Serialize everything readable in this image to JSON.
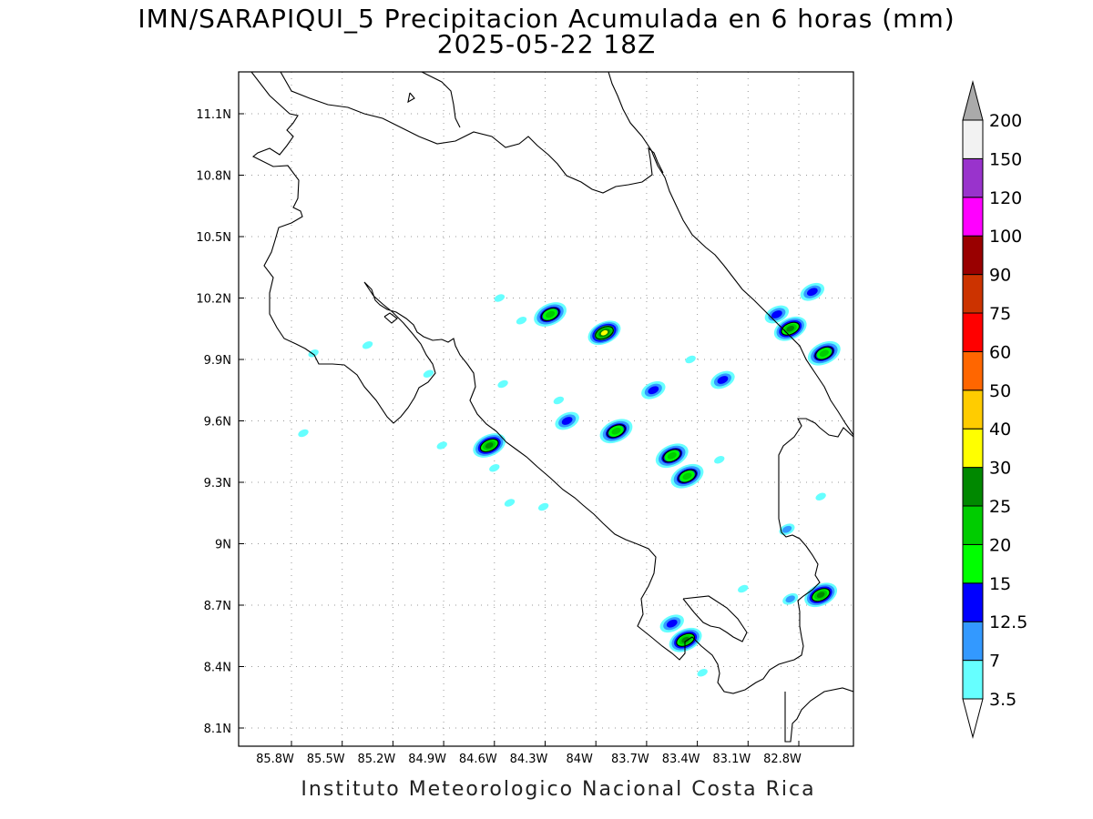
{
  "header": {
    "title_line1": "IMN/SARAPIQUI_5 Precipitacion Acumulada en 6 horas (mm)",
    "title_line2": "2025-05-22 18Z"
  },
  "footer": {
    "credit": "Instituto Meteorologico Nacional Costa Rica"
  },
  "map": {
    "lat_labels": [
      "11.1N",
      "10.8N",
      "10.5N",
      "10.2N",
      "9.9N",
      "9.6N",
      "9.3N",
      "9N",
      "8.7N",
      "8.4N",
      "8.1N"
    ],
    "lon_labels": [
      "85.8W",
      "85.5W",
      "85.2W",
      "84.9W",
      "84.6W",
      "84.3W",
      "84W",
      "83.7W",
      "83.4W",
      "83.1W",
      "82.8W"
    ],
    "precip_cells": [
      {
        "lon": -83.95,
        "lat": 10.03,
        "max_mm": 30
      },
      {
        "lon": -84.63,
        "lat": 9.48,
        "max_mm": 25
      },
      {
        "lon": -82.85,
        "lat": 10.05,
        "max_mm": 25
      },
      {
        "lon": -82.67,
        "lat": 8.75,
        "max_mm": 25
      },
      {
        "lon": -83.47,
        "lat": 8.53,
        "max_mm": 25
      },
      {
        "lon": -82.93,
        "lat": 10.12,
        "max_mm": 12.5
      },
      {
        "lon": -82.65,
        "lat": 9.93,
        "max_mm": 20
      },
      {
        "lon": -82.72,
        "lat": 10.23,
        "max_mm": 12.5
      },
      {
        "lon": -84.27,
        "lat": 10.12,
        "max_mm": 20
      },
      {
        "lon": -83.88,
        "lat": 9.55,
        "max_mm": 20
      },
      {
        "lon": -83.55,
        "lat": 9.43,
        "max_mm": 20
      },
      {
        "lon": -83.46,
        "lat": 9.33,
        "max_mm": 20
      },
      {
        "lon": -84.17,
        "lat": 9.6,
        "max_mm": 12.5
      },
      {
        "lon": -83.55,
        "lat": 8.61,
        "max_mm": 12.5
      },
      {
        "lon": -83.66,
        "lat": 9.75,
        "max_mm": 12.5
      },
      {
        "lon": -83.25,
        "lat": 9.8,
        "max_mm": 12.5
      },
      {
        "lon": -82.85,
        "lat": 8.73,
        "max_mm": 7
      },
      {
        "lon": -82.87,
        "lat": 9.07,
        "max_mm": 7
      },
      {
        "lon": -85.67,
        "lat": 9.93,
        "max_mm": 3.5
      },
      {
        "lon": -85.73,
        "lat": 9.54,
        "max_mm": 3.5
      },
      {
        "lon": -84.57,
        "lat": 10.2,
        "max_mm": 3.5
      },
      {
        "lon": -84.44,
        "lat": 10.09,
        "max_mm": 3.5
      },
      {
        "lon": -84.55,
        "lat": 9.78,
        "max_mm": 3.5
      },
      {
        "lon": -84.22,
        "lat": 9.7,
        "max_mm": 3.5
      },
      {
        "lon": -84.6,
        "lat": 9.37,
        "max_mm": 3.5
      },
      {
        "lon": -84.51,
        "lat": 9.2,
        "max_mm": 3.5
      },
      {
        "lon": -84.31,
        "lat": 9.18,
        "max_mm": 3.5
      },
      {
        "lon": -83.37,
        "lat": 8.37,
        "max_mm": 3.5
      },
      {
        "lon": -82.67,
        "lat": 9.23,
        "max_mm": 3.5
      },
      {
        "lon": -85.35,
        "lat": 9.97,
        "max_mm": 3.5
      },
      {
        "lon": -84.99,
        "lat": 9.83,
        "max_mm": 3.5
      },
      {
        "lon": -84.91,
        "lat": 9.48,
        "max_mm": 3.5
      },
      {
        "lon": -83.44,
        "lat": 9.9,
        "max_mm": 3.5
      },
      {
        "lon": -83.27,
        "lat": 9.41,
        "max_mm": 3.5
      },
      {
        "lon": -83.13,
        "lat": 8.78,
        "max_mm": 3.5
      }
    ]
  },
  "colorbar": {
    "levels": [
      "3.5",
      "7",
      "12.5",
      "15",
      "20",
      "25",
      "30",
      "40",
      "50",
      "60",
      "75",
      "90",
      "100",
      "120",
      "150",
      "200"
    ],
    "colors": [
      "#66ffff",
      "#3399ff",
      "#0000ff",
      "#00ff00",
      "#00cc00",
      "#008800",
      "#ffff00",
      "#ffcc00",
      "#ff6600",
      "#ff0000",
      "#cc3300",
      "#990000",
      "#ff00ff",
      "#9933cc",
      "#f2f2f2",
      "#aaaaaa"
    ],
    "under_color": "#ffffff"
  }
}
